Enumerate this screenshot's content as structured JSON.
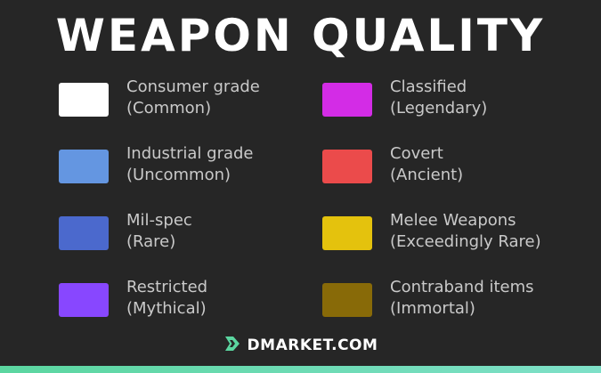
{
  "title": "WEAPON QUALITY",
  "qualities": [
    {
      "grade": "Consumer grade",
      "tier": "(Common)",
      "color": "#ffffff"
    },
    {
      "grade": "Industrial grade",
      "tier": "(Uncommon)",
      "color": "#6496e1"
    },
    {
      "grade": "Mil-spec",
      "tier": "(Rare)",
      "color": "#4b69cd"
    },
    {
      "grade": "Restricted",
      "tier": "(Mythical)",
      "color": "#8847ff"
    },
    {
      "grade": "Classified",
      "tier": "(Legendary)",
      "color": "#d32ce6"
    },
    {
      "grade": "Covert",
      "tier": "(Ancient)",
      "color": "#eb4b4b"
    },
    {
      "grade": "Melee Weapons",
      "tier": "(Exceedingly Rare)",
      "color": "#e4c20d"
    },
    {
      "grade": "Contraband items",
      "tier": "(Immortal)",
      "color": "#886a08"
    }
  ],
  "brand": {
    "name": "DMARKET.COM",
    "logo_icon": "dmarket-logo-icon",
    "accent": "#5bd6a0"
  },
  "colors": {
    "background": "#262626",
    "label_text": "#c9c9c9",
    "title_text": "#ffffff"
  }
}
